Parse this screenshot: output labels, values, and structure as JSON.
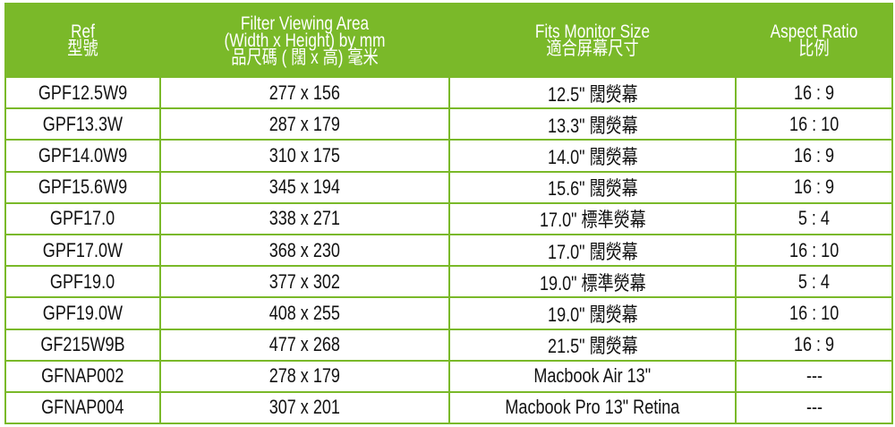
{
  "headers": [
    {
      "en": "Ref",
      "zh": "型號"
    },
    {
      "en": "Filter Viewing Area",
      "en2": "(Width x Height) by mm",
      "zh": "品尺碼 ( 闊 x 高) 毫米"
    },
    {
      "en": "Fits Monitor Size",
      "zh": "適合屏幕尺寸"
    },
    {
      "en": "Aspect Ratio",
      "zh": "比例"
    }
  ],
  "rows": [
    [
      "GPF12.5W9",
      "277 x 156",
      "12.5\" 闊熒幕",
      "16 : 9"
    ],
    [
      "GPF13.3W",
      "287 x 179",
      "13.3\" 闊熒幕",
      "16 : 10"
    ],
    [
      "GPF14.0W9",
      "310 x 175",
      "14.0\" 闊熒幕",
      "16 : 9"
    ],
    [
      "GPF15.6W9",
      "345 x 194",
      "15.6\" 闊熒幕",
      "16 : 9"
    ],
    [
      "GPF17.0",
      "338 x 271",
      "17.0\" 標準熒幕",
      "5 : 4"
    ],
    [
      "GPF17.0W",
      "368 x 230",
      "17.0\" 闊熒幕",
      "16 : 10"
    ],
    [
      "GPF19.0",
      "377 x 302",
      "19.0\" 標準熒幕",
      "5 : 4"
    ],
    [
      "GPF19.0W",
      "408 x 255",
      "19.0\" 闊熒幕",
      "16 : 10"
    ],
    [
      "GF215W9B",
      "477 x 268",
      "21.5\" 闊熒幕",
      "16 : 9"
    ],
    [
      "GFNAP002",
      "278 x 179",
      "Macbook Air 13\"",
      "---"
    ],
    [
      "GFNAP004",
      "307 x 201",
      "Macbook Pro 13\" Retina",
      "---"
    ]
  ],
  "colors": {
    "header_bg": "#7ab929",
    "grid": "#7ab929"
  }
}
